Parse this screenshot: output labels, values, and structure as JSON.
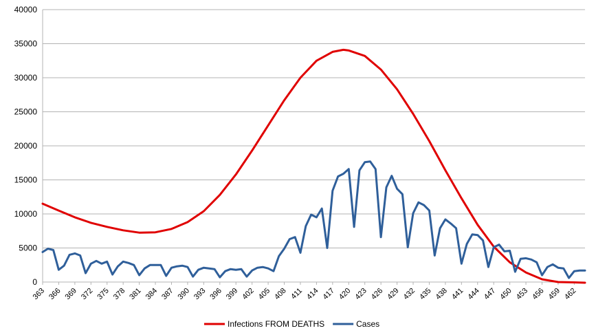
{
  "chart_data": {
    "type": "line",
    "title": "",
    "xlabel": "",
    "ylabel": "",
    "ylim": [
      0,
      40000
    ],
    "yticks": [
      0,
      5000,
      10000,
      15000,
      20000,
      25000,
      30000,
      35000,
      40000
    ],
    "xlim": [
      363,
      464
    ],
    "xtick_step": 3,
    "grid": "horizontal",
    "legend_position": "bottom",
    "series": [
      {
        "name": "Infections FROM DEATHS",
        "color": "#e00000",
        "points": [
          [
            363,
            11500
          ],
          [
            366,
            10500
          ],
          [
            369,
            9500
          ],
          [
            372,
            8700
          ],
          [
            375,
            8100
          ],
          [
            378,
            7600
          ],
          [
            381,
            7250
          ],
          [
            384,
            7300
          ],
          [
            387,
            7800
          ],
          [
            390,
            8800
          ],
          [
            393,
            10400
          ],
          [
            396,
            12800
          ],
          [
            399,
            15800
          ],
          [
            402,
            19300
          ],
          [
            405,
            23000
          ],
          [
            408,
            26700
          ],
          [
            411,
            30000
          ],
          [
            414,
            32500
          ],
          [
            417,
            33800
          ],
          [
            419,
            34100
          ],
          [
            420,
            34000
          ],
          [
            423,
            33200
          ],
          [
            426,
            31200
          ],
          [
            429,
            28300
          ],
          [
            432,
            24700
          ],
          [
            435,
            20700
          ],
          [
            438,
            16400
          ],
          [
            441,
            12300
          ],
          [
            444,
            8400
          ],
          [
            447,
            5200
          ],
          [
            450,
            2900
          ],
          [
            453,
            1400
          ],
          [
            456,
            400
          ],
          [
            459,
            0
          ],
          [
            462,
            -50
          ],
          [
            464,
            -100
          ]
        ]
      },
      {
        "name": "Cases",
        "color": "#2f5f9a",
        "points": [
          [
            363,
            4400
          ],
          [
            364,
            4900
          ],
          [
            365,
            4700
          ],
          [
            366,
            1800
          ],
          [
            367,
            2400
          ],
          [
            368,
            4000
          ],
          [
            369,
            4200
          ],
          [
            370,
            3900
          ],
          [
            371,
            1300
          ],
          [
            372,
            2700
          ],
          [
            373,
            3100
          ],
          [
            374,
            2700
          ],
          [
            375,
            3000
          ],
          [
            376,
            1100
          ],
          [
            377,
            2300
          ],
          [
            378,
            3000
          ],
          [
            379,
            2800
          ],
          [
            380,
            2500
          ],
          [
            381,
            1000
          ],
          [
            382,
            2000
          ],
          [
            383,
            2500
          ],
          [
            384,
            2500
          ],
          [
            385,
            2500
          ],
          [
            386,
            900
          ],
          [
            387,
            2100
          ],
          [
            388,
            2300
          ],
          [
            389,
            2400
          ],
          [
            390,
            2200
          ],
          [
            391,
            800
          ],
          [
            392,
            1800
          ],
          [
            393,
            2100
          ],
          [
            394,
            2000
          ],
          [
            395,
            1900
          ],
          [
            396,
            700
          ],
          [
            397,
            1600
          ],
          [
            398,
            1900
          ],
          [
            399,
            1800
          ],
          [
            400,
            1900
          ],
          [
            401,
            800
          ],
          [
            402,
            1700
          ],
          [
            403,
            2100
          ],
          [
            404,
            2200
          ],
          [
            405,
            2000
          ],
          [
            406,
            1600
          ],
          [
            407,
            3800
          ],
          [
            408,
            4900
          ],
          [
            409,
            6300
          ],
          [
            410,
            6600
          ],
          [
            411,
            4300
          ],
          [
            412,
            8200
          ],
          [
            413,
            9900
          ],
          [
            414,
            9500
          ],
          [
            415,
            10800
          ],
          [
            416,
            5000
          ],
          [
            417,
            13400
          ],
          [
            418,
            15500
          ],
          [
            419,
            15900
          ],
          [
            420,
            16600
          ],
          [
            421,
            8100
          ],
          [
            422,
            16400
          ],
          [
            423,
            17600
          ],
          [
            424,
            17700
          ],
          [
            425,
            16600
          ],
          [
            426,
            6600
          ],
          [
            427,
            13900
          ],
          [
            428,
            15600
          ],
          [
            429,
            13700
          ],
          [
            430,
            12900
          ],
          [
            431,
            5100
          ],
          [
            432,
            10100
          ],
          [
            433,
            11700
          ],
          [
            434,
            11300
          ],
          [
            435,
            10500
          ],
          [
            436,
            3900
          ],
          [
            437,
            7900
          ],
          [
            438,
            9200
          ],
          [
            439,
            8600
          ],
          [
            440,
            7900
          ],
          [
            441,
            2700
          ],
          [
            442,
            5600
          ],
          [
            443,
            7000
          ],
          [
            444,
            6900
          ],
          [
            445,
            6100
          ],
          [
            446,
            2200
          ],
          [
            447,
            5100
          ],
          [
            448,
            5500
          ],
          [
            449,
            4500
          ],
          [
            450,
            4600
          ],
          [
            451,
            1500
          ],
          [
            452,
            3400
          ],
          [
            453,
            3500
          ],
          [
            454,
            3300
          ],
          [
            455,
            2900
          ],
          [
            456,
            1000
          ],
          [
            457,
            2200
          ],
          [
            458,
            2600
          ],
          [
            459,
            2100
          ],
          [
            460,
            2000
          ],
          [
            461,
            600
          ],
          [
            462,
            1600
          ],
          [
            463,
            1700
          ],
          [
            464,
            1700
          ]
        ]
      }
    ]
  }
}
